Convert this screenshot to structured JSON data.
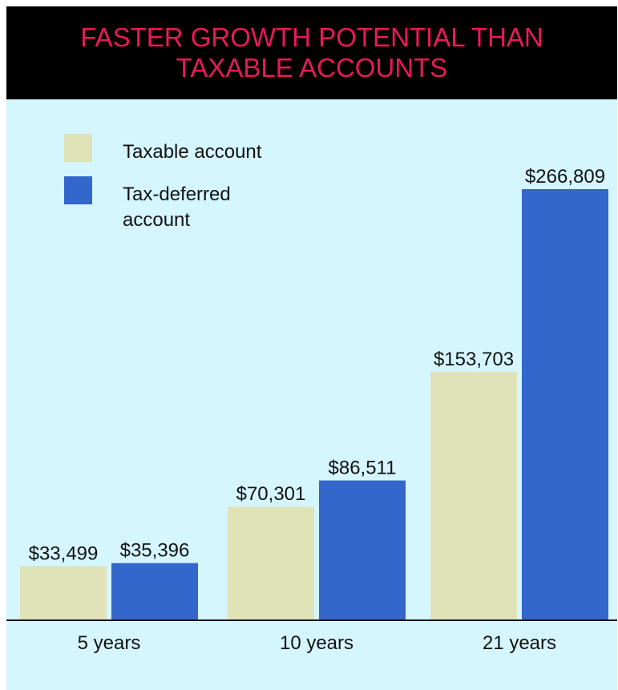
{
  "chart_data": {
    "type": "bar",
    "title": "FASTER GROWTH POTENTIAL THAN TAXABLE ACCOUNTS",
    "categories": [
      "5 years",
      "10 years",
      "21 years"
    ],
    "series": [
      {
        "name": "Taxable account",
        "color": "#e0e2b8",
        "values": [
          33499,
          70301,
          153703
        ],
        "labels": [
          "$33,499",
          "$70,301",
          "$153,703"
        ]
      },
      {
        "name": "Tax-deferred account",
        "color": "#3467cb",
        "values": [
          35396,
          86511,
          266809
        ],
        "labels": [
          "$35,396",
          "$86,511",
          "$266,809"
        ]
      }
    ],
    "ylim": [
      0,
      280000
    ],
    "grid": false,
    "legend_position": "top-left",
    "colors": {
      "title_text": "#e8195a",
      "title_background": "#000000",
      "plot_background": "#d5f6fe",
      "baseline": "#111111"
    }
  }
}
